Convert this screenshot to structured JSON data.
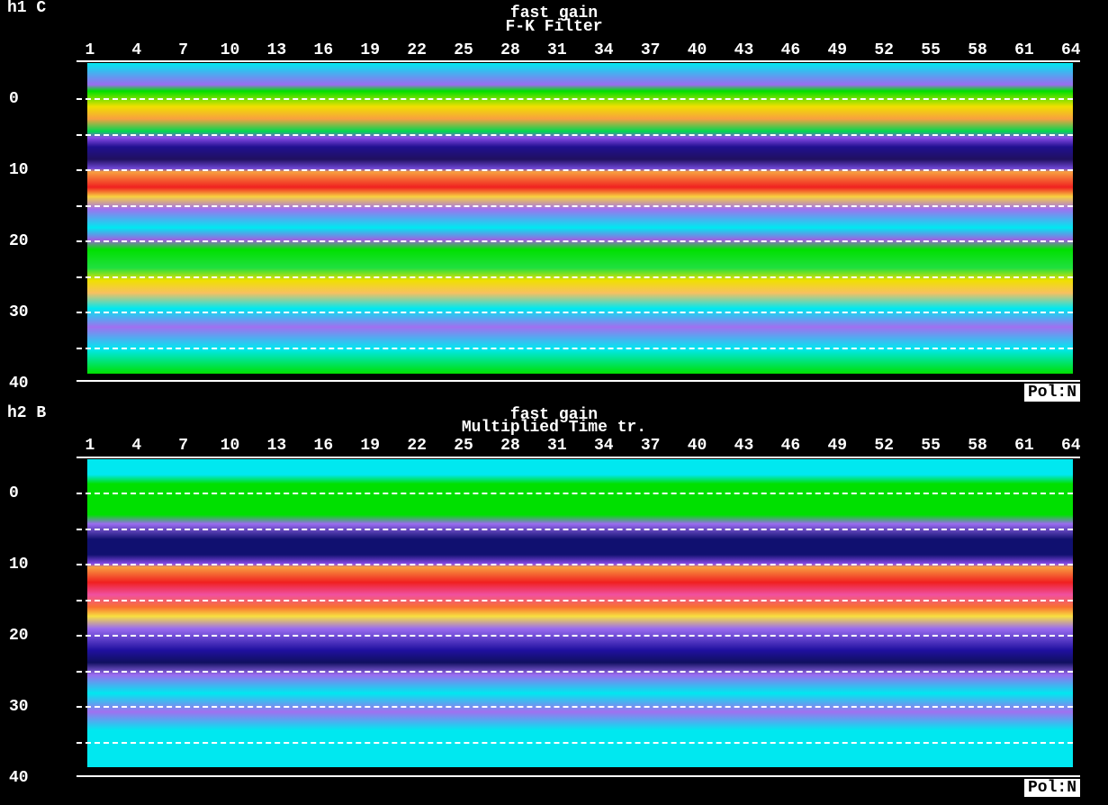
{
  "panels": [
    {
      "label": "h1 C",
      "title": "fast gain",
      "subtitle": "F-K Filter",
      "xticks": [
        1,
        4,
        7,
        10,
        13,
        16,
        19,
        22,
        25,
        28,
        31,
        34,
        37,
        40,
        43,
        46,
        49,
        52,
        55,
        58,
        61,
        64
      ],
      "yticks": [
        0,
        10,
        20,
        30,
        40
      ],
      "footer": "Pol:N"
    },
    {
      "label": "h2 B",
      "title": "fast gain",
      "subtitle": "Multiplied Time tr.",
      "xticks": [
        1,
        4,
        7,
        10,
        13,
        16,
        19,
        22,
        25,
        28,
        31,
        34,
        37,
        40,
        43,
        46,
        49,
        52,
        55,
        58,
        61,
        64
      ],
      "yticks": [
        0,
        10,
        20,
        30,
        40
      ],
      "footer": "Pol:N"
    }
  ]
}
